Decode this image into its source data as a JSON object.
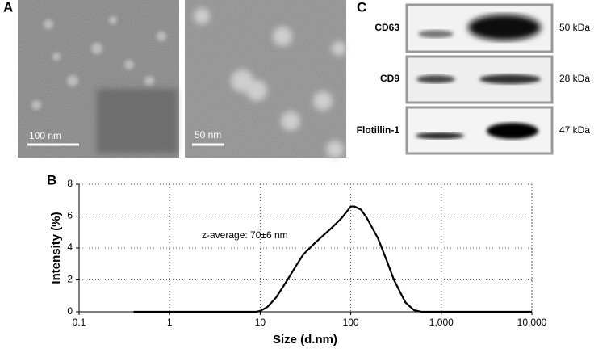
{
  "panel_a": {
    "label": "A",
    "scale_bars": [
      "100 nm",
      "50 nm"
    ]
  },
  "panel_c": {
    "label": "C",
    "blots": [
      {
        "protein": "CD63",
        "size": "50 kDa"
      },
      {
        "protein": "CD9",
        "size": "28 kDa"
      },
      {
        "protein": "Flotillin-1",
        "size": "47 kDa"
      }
    ]
  },
  "chart_data": {
    "type": "line",
    "panel_label": "B",
    "x_label": "Size (d.nm)",
    "y_label": "Intensity (%)",
    "annotation": "z-average: 70±6 nm",
    "x": [
      0.4,
      1,
      5,
      9,
      10,
      12,
      15,
      20,
      25,
      30,
      40,
      50,
      60,
      80,
      100,
      110,
      130,
      150,
      200,
      250,
      300,
      400,
      500,
      600,
      1000,
      5000,
      10000
    ],
    "values": [
      0,
      0,
      0,
      0,
      0.05,
      0.3,
      0.9,
      2.0,
      2.9,
      3.6,
      4.3,
      4.8,
      5.2,
      5.9,
      6.6,
      6.6,
      6.4,
      5.9,
      4.6,
      3.2,
      2.0,
      0.6,
      0.1,
      0,
      0,
      0,
      0
    ],
    "color": "#000000",
    "x_log": true,
    "xlim": [
      0.1,
      10000
    ],
    "xticks": [
      0.1,
      1,
      10,
      100,
      {
        "value": 1000,
        "label": "1,000"
      },
      {
        "value": 10000,
        "label": "10,000"
      }
    ],
    "ylim": [
      0,
      8
    ],
    "yticks": [
      0,
      2,
      4,
      6,
      8
    ],
    "grid": true
  }
}
